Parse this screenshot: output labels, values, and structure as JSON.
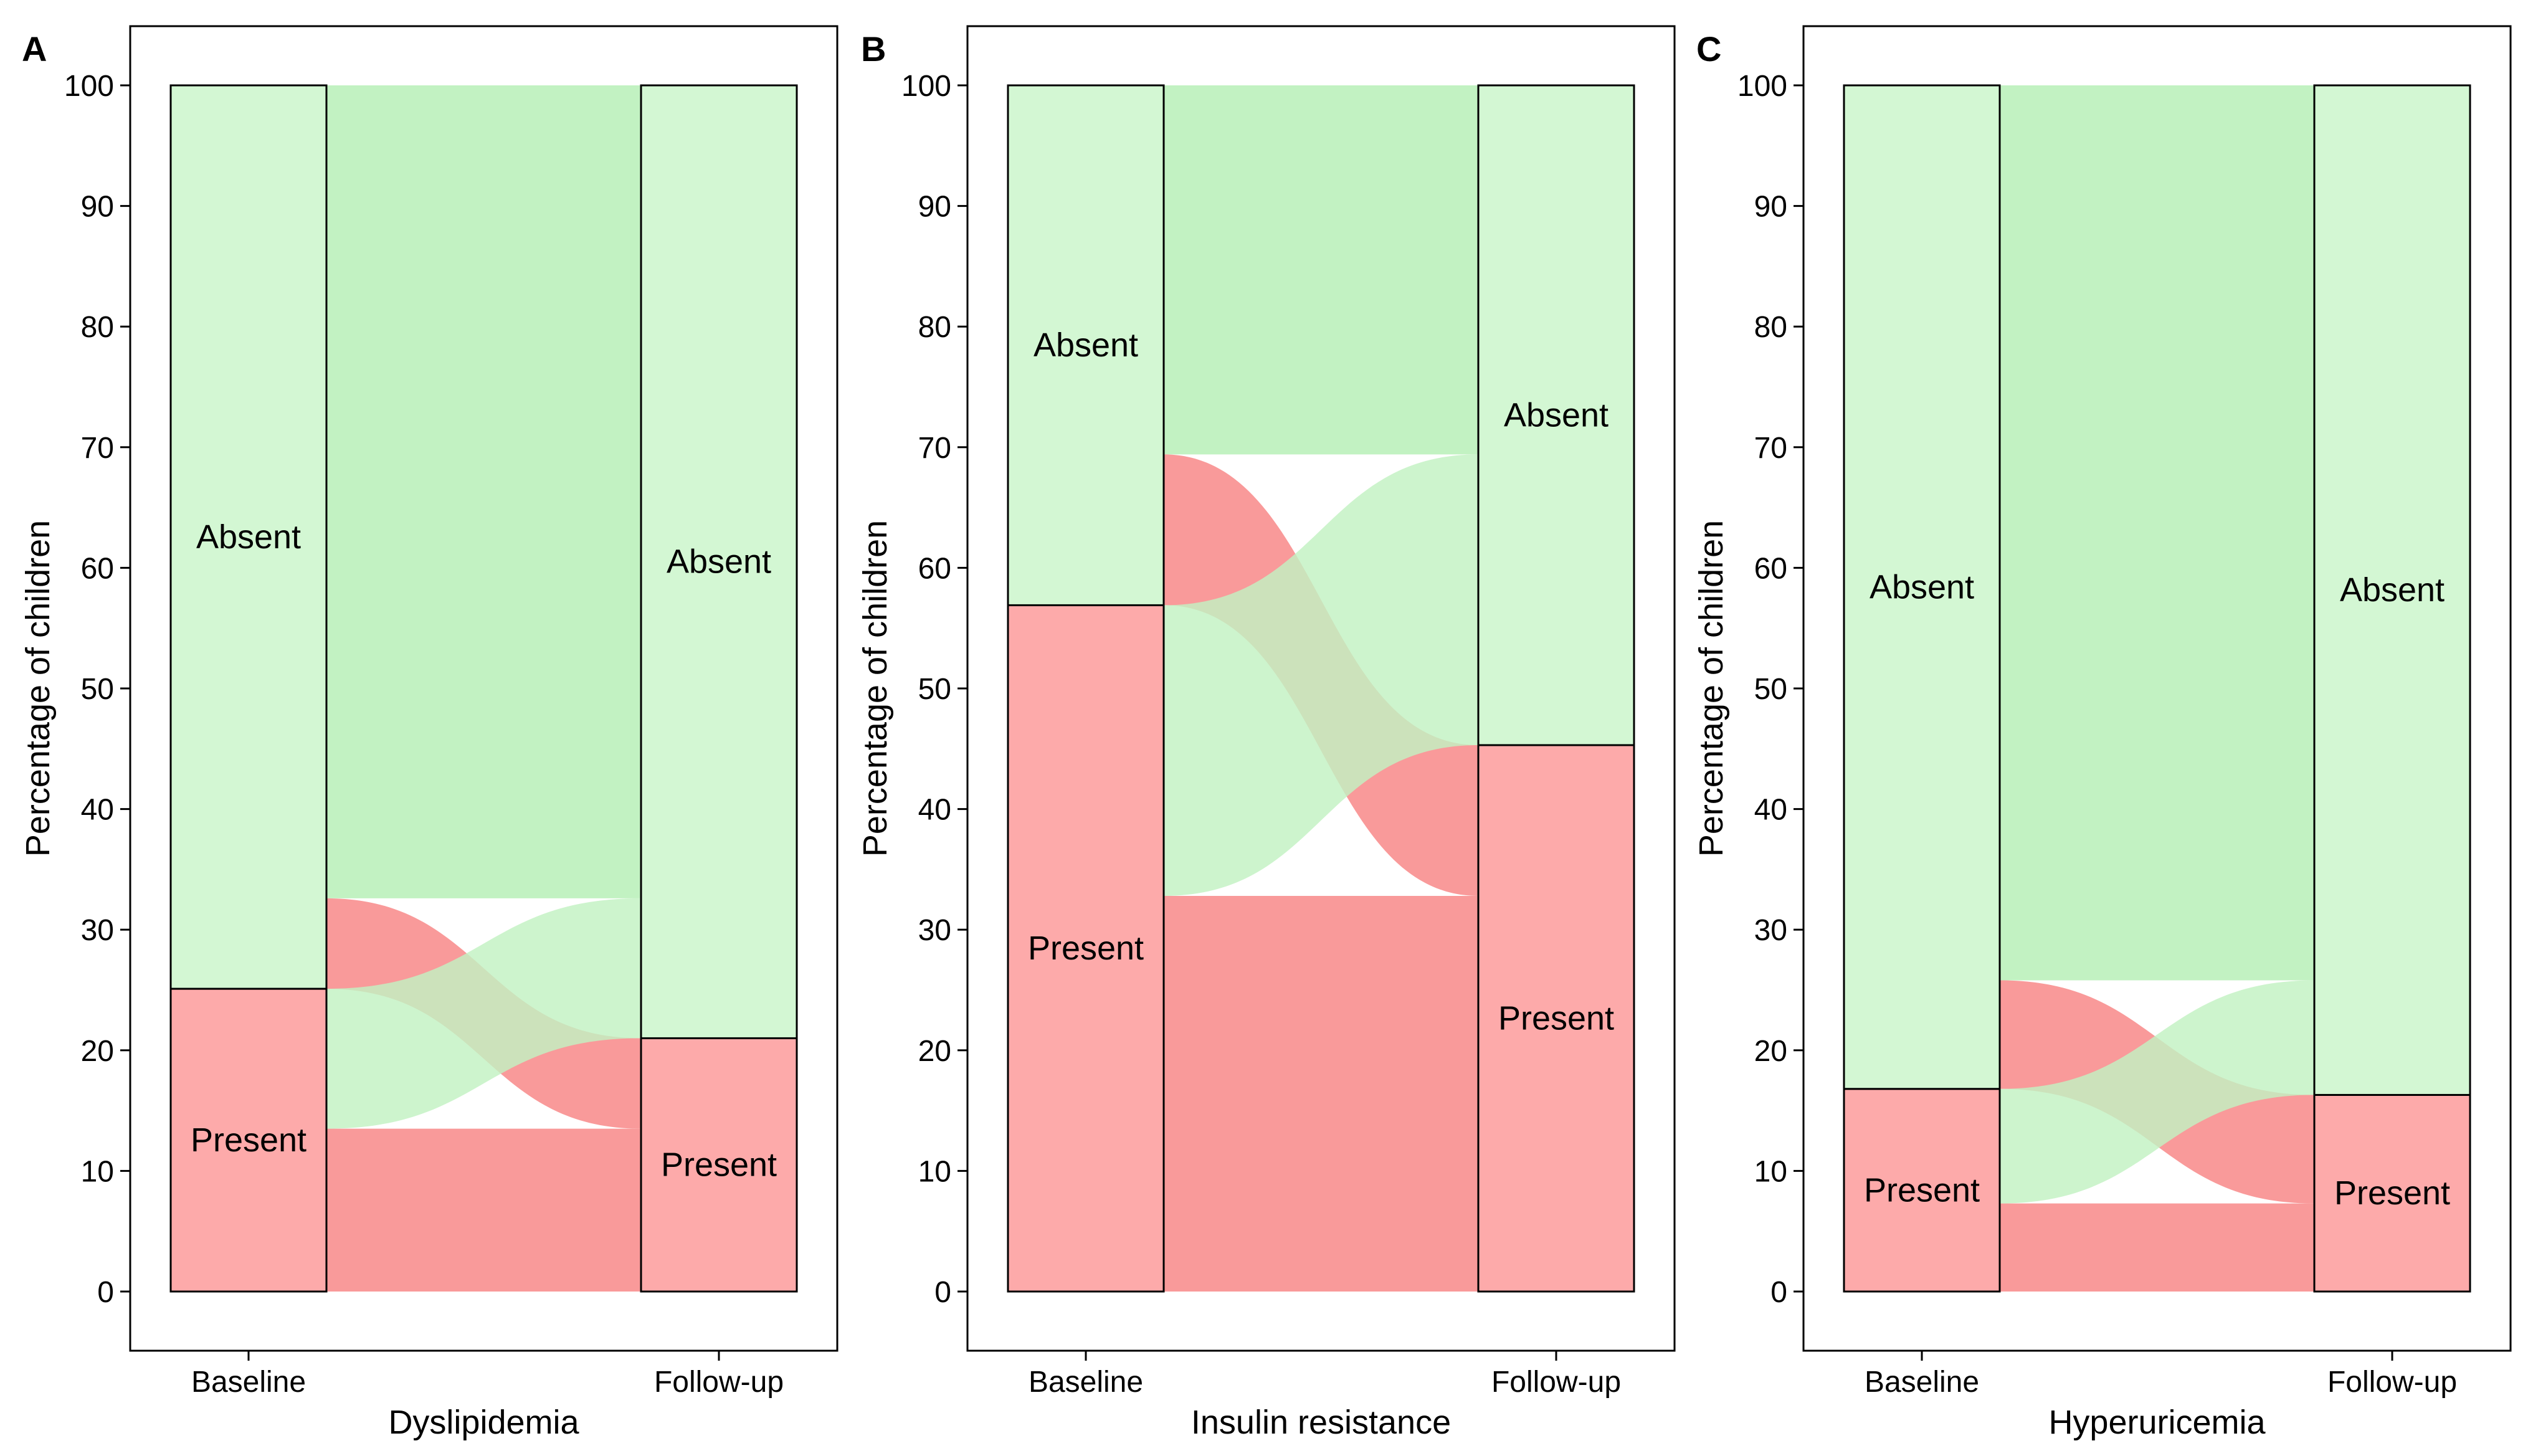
{
  "colors": {
    "absent": "#c2f2c2",
    "present": "#f99a9a",
    "stratum_absent": "#d3f7d3",
    "stratum_present": "#fdaaaa",
    "flow_overlap": "#e0917a"
  },
  "chart_data": [
    {
      "type": "alluvial",
      "panel": "A",
      "title": "",
      "xlabel": "Dyslipidemia",
      "ylabel": "Percentage of children",
      "ylim": [
        0,
        100
      ],
      "yticks": [
        "0",
        "10",
        "20",
        "30",
        "40",
        "50",
        "60",
        "70",
        "80",
        "90",
        "100"
      ],
      "axes": [
        "Baseline",
        "Follow-up"
      ],
      "strata": {
        "Baseline": [
          {
            "label": "Present",
            "value": 25.1
          },
          {
            "label": "Absent",
            "value": 74.9
          }
        ],
        "Follow-up": [
          {
            "label": "Present",
            "value": 21.0
          },
          {
            "label": "Absent",
            "value": 79.0
          }
        ]
      },
      "flows": [
        {
          "from": "Present",
          "to": "Present",
          "value": 13.5
        },
        {
          "from": "Present",
          "to": "Absent",
          "value": 11.6
        },
        {
          "from": "Absent",
          "to": "Present",
          "value": 7.5
        },
        {
          "from": "Absent",
          "to": "Absent",
          "value": 67.4
        }
      ]
    },
    {
      "type": "alluvial",
      "panel": "B",
      "title": "",
      "xlabel": "Insulin resistance",
      "ylabel": "Percentage of children",
      "ylim": [
        0,
        100
      ],
      "yticks": [
        "0",
        "10",
        "20",
        "30",
        "40",
        "50",
        "60",
        "70",
        "80",
        "90",
        "100"
      ],
      "axes": [
        "Baseline",
        "Follow-up"
      ],
      "strata": {
        "Baseline": [
          {
            "label": "Present",
            "value": 56.9
          },
          {
            "label": "Absent",
            "value": 43.1
          }
        ],
        "Follow-up": [
          {
            "label": "Present",
            "value": 45.3
          },
          {
            "label": "Absent",
            "value": 54.7
          }
        ]
      },
      "flows": [
        {
          "from": "Present",
          "to": "Present",
          "value": 32.8
        },
        {
          "from": "Present",
          "to": "Absent",
          "value": 24.1
        },
        {
          "from": "Absent",
          "to": "Present",
          "value": 12.5
        },
        {
          "from": "Absent",
          "to": "Absent",
          "value": 30.6
        }
      ]
    },
    {
      "type": "alluvial",
      "panel": "C",
      "title": "",
      "xlabel": "Hyperuricemia",
      "ylabel": "Percentage of children",
      "ylim": [
        0,
        100
      ],
      "yticks": [
        "0",
        "10",
        "20",
        "30",
        "40",
        "50",
        "60",
        "70",
        "80",
        "90",
        "100"
      ],
      "axes": [
        "Baseline",
        "Follow-up"
      ],
      "strata": {
        "Baseline": [
          {
            "label": "Present",
            "value": 16.8
          },
          {
            "label": "Absent",
            "value": 83.2
          }
        ],
        "Follow-up": [
          {
            "label": "Present",
            "value": 16.3
          },
          {
            "label": "Absent",
            "value": 83.7
          }
        ]
      },
      "flows": [
        {
          "from": "Present",
          "to": "Present",
          "value": 7.3
        },
        {
          "from": "Present",
          "to": "Absent",
          "value": 9.5
        },
        {
          "from": "Absent",
          "to": "Present",
          "value": 9.0
        },
        {
          "from": "Absent",
          "to": "Absent",
          "value": 74.2
        }
      ]
    }
  ]
}
